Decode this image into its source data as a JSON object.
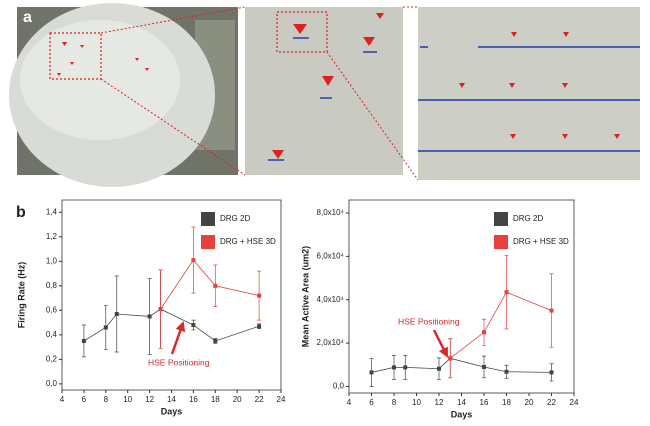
{
  "panel_labels": [
    "a",
    "b"
  ],
  "chart_data": [
    {
      "type": "line",
      "xlabel": "Days",
      "ylabel": "Firing Rate (Hz)",
      "xlim": [
        4,
        24
      ],
      "xticks": [
        4,
        6,
        8,
        10,
        12,
        14,
        16,
        18,
        20,
        22,
        24
      ],
      "ylim": [
        -0.05,
        1.5
      ],
      "yticks": [
        {
          "value": 0,
          "label": "0,0"
        },
        {
          "value": 0.2,
          "label": "0,2"
        },
        {
          "value": 0.4,
          "label": "0,4"
        },
        {
          "value": 0.6,
          "label": "0,6"
        },
        {
          "value": 0.8,
          "label": "0,8"
        },
        {
          "value": 1.0,
          "label": "1,0"
        },
        {
          "value": 1.2,
          "label": "1,2"
        },
        {
          "value": 1.4,
          "label": "1,4"
        }
      ],
      "legend": "upper right",
      "annotation": "HSE Positioning",
      "series": [
        {
          "name": "DRG 2D",
          "color": "#444444",
          "x": [
            6,
            8,
            9,
            12,
            13,
            16,
            18,
            22
          ],
          "values": [
            0.35,
            0.46,
            0.57,
            0.55,
            0.61,
            0.48,
            0.35,
            0.47
          ],
          "errors": [
            0.13,
            0.18,
            0.31,
            0.31,
            0.32,
            0.04,
            0.02,
            0.02
          ]
        },
        {
          "name": "DRG + HSE 3D",
          "color": "#e8403f",
          "x": [
            13,
            16,
            18,
            22
          ],
          "values": [
            0.61,
            1.01,
            0.8,
            0.72
          ],
          "errors": [
            0.32,
            0.27,
            0.17,
            0.2
          ]
        }
      ]
    },
    {
      "type": "line",
      "xlabel": "Days",
      "ylabel": "Mean Active Area (um2)",
      "xlim": [
        4,
        24
      ],
      "xticks": [
        4,
        6,
        8,
        10,
        12,
        14,
        16,
        18,
        20,
        22,
        24
      ],
      "ylim": [
        -3000,
        86000
      ],
      "yticks": [
        {
          "value": 0,
          "label": "0,0"
        },
        {
          "value": 20000,
          "label": "2,0x10⁴"
        },
        {
          "value": 40000,
          "label": "4,0x10⁴"
        },
        {
          "value": 60000,
          "label": "6,0x10⁴"
        },
        {
          "value": 80000,
          "label": "8,0x10⁴"
        }
      ],
      "legend": "upper right",
      "annotation": "HSE Positioning",
      "series": [
        {
          "name": "DRG 2D",
          "color": "#444444",
          "x": [
            6,
            8,
            9,
            12,
            13,
            16,
            18,
            22
          ],
          "values": [
            6500,
            8800,
            8800,
            8200,
            13000,
            9000,
            6800,
            6500
          ],
          "errors": [
            6500,
            5500,
            5500,
            5000,
            9000,
            5000,
            3000,
            4000
          ]
        },
        {
          "name": "DRG + HSE 3D",
          "color": "#e8403f",
          "x": [
            13,
            16,
            18,
            22
          ],
          "values": [
            13000,
            25000,
            43500,
            35000
          ],
          "errors": [
            9000,
            6000,
            17000,
            17000
          ]
        }
      ]
    }
  ]
}
